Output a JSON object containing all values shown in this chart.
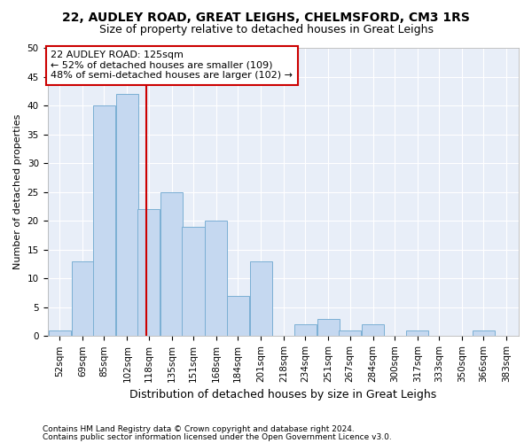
{
  "title1": "22, AUDLEY ROAD, GREAT LEIGHS, CHELMSFORD, CM3 1RS",
  "title2": "Size of property relative to detached houses in Great Leighs",
  "xlabel": "Distribution of detached houses by size in Great Leighs",
  "ylabel": "Number of detached properties",
  "footnote1": "Contains HM Land Registry data © Crown copyright and database right 2024.",
  "footnote2": "Contains public sector information licensed under the Open Government Licence v3.0.",
  "annotation_line1": "22 AUDLEY ROAD: 125sqm",
  "annotation_line2": "← 52% of detached houses are smaller (109)",
  "annotation_line3": "48% of semi-detached houses are larger (102) →",
  "property_size": 125,
  "bin_starts": [
    52,
    69,
    85,
    102,
    118,
    135,
    151,
    168,
    184,
    201,
    218,
    234,
    251,
    267,
    284,
    300,
    317,
    333,
    350,
    366,
    383
  ],
  "bin_width": 17,
  "values": [
    1,
    13,
    40,
    42,
    22,
    25,
    19,
    20,
    7,
    13,
    0,
    2,
    3,
    1,
    2,
    0,
    1,
    0,
    0,
    1
  ],
  "bar_color": "#c5d8f0",
  "bar_edge_color": "#7bafd4",
  "marker_color": "#cc0000",
  "fig_background": "#ffffff",
  "ax_background": "#e8eef8",
  "grid_color": "#ffffff",
  "ylim": [
    0,
    50
  ],
  "yticks": [
    0,
    5,
    10,
    15,
    20,
    25,
    30,
    35,
    40,
    45,
    50
  ],
  "title1_fontsize": 10,
  "title2_fontsize": 9,
  "ylabel_fontsize": 8,
  "xlabel_fontsize": 9,
  "tick_fontsize": 7.5,
  "annot_fontsize": 8,
  "footnote_fontsize": 6.5
}
